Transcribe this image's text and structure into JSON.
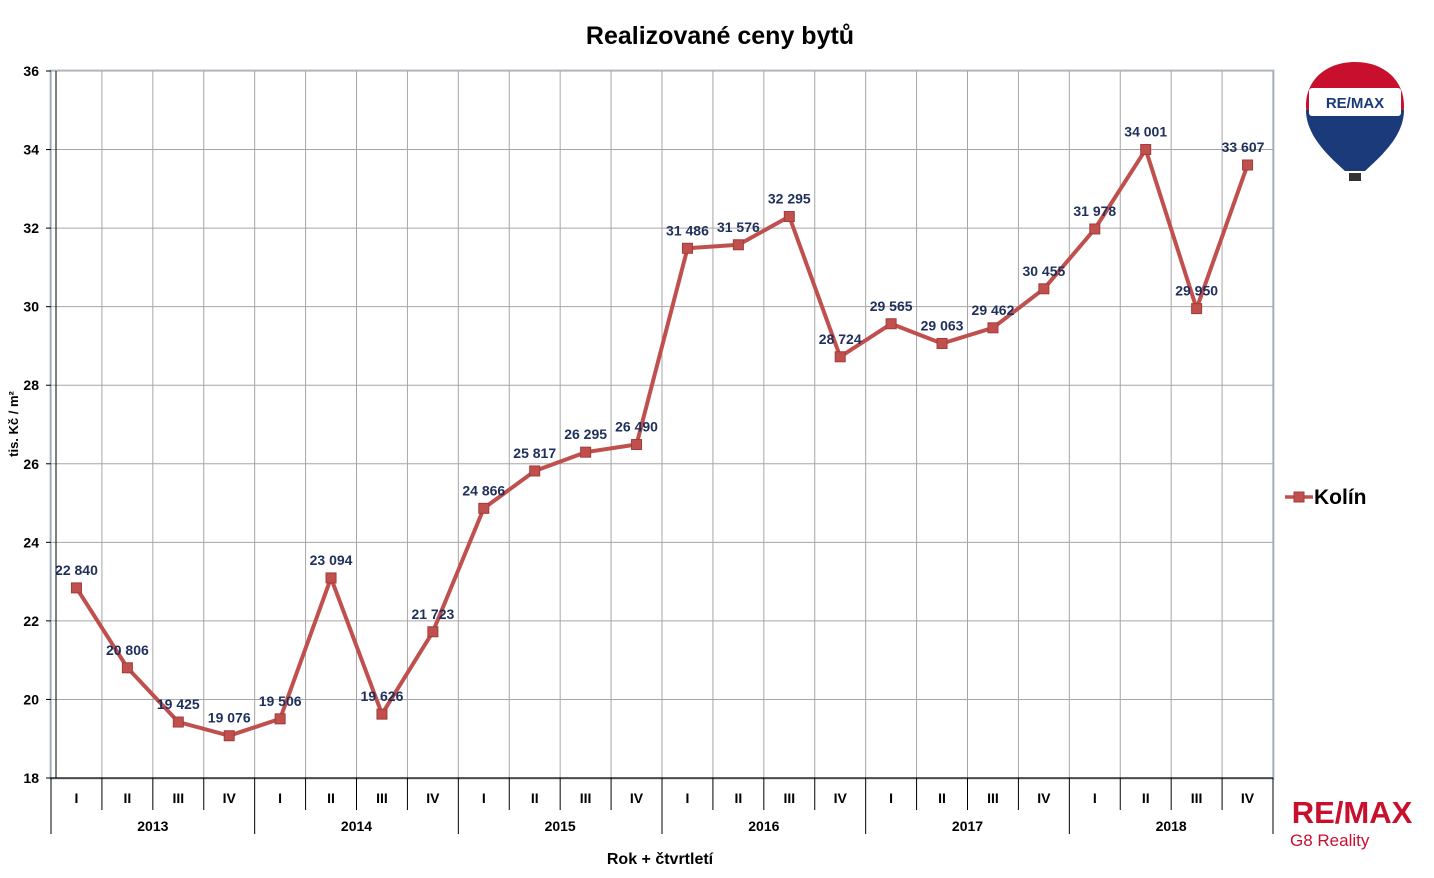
{
  "chart_data": {
    "type": "line",
    "title": "Realizované ceny bytů",
    "xlabel": "Rok + čtvrtletí",
    "ylabel": "tis. Kč / m²",
    "ylim": [
      18,
      36
    ],
    "yticks": [
      "18",
      "20",
      "22",
      "24",
      "26",
      "28",
      "30",
      "32",
      "34",
      "36"
    ],
    "grid": true,
    "legend_position": "right",
    "quarters": [
      "I",
      "II",
      "III",
      "IV"
    ],
    "years": [
      "2013",
      "2014",
      "2015",
      "2016",
      "2017",
      "2018"
    ],
    "series": [
      {
        "name": "Kolín",
        "color": "#c0504d",
        "values": [
          22.84,
          20.806,
          19.425,
          19.076,
          19.506,
          23.094,
          19.626,
          21.723,
          24.866,
          25.817,
          26.295,
          26.49,
          31.486,
          31.576,
          32.295,
          28.724,
          29.565,
          29.063,
          29.462,
          30.455,
          31.978,
          34.001,
          29.95,
          33.607
        ],
        "labels": [
          "22 840",
          "20 806",
          "19 425",
          "19 076",
          "19 506",
          "23 094",
          "19 626",
          "21 723",
          "24 866",
          "25 817",
          "26 295",
          "26 490",
          "31 486",
          "31 576",
          "32 295",
          "28 724",
          "29 565",
          "29 063",
          "29 462",
          "30 455",
          "31 978",
          "34 001",
          "29 950",
          "33 607"
        ]
      }
    ]
  },
  "branding": {
    "balloon_text": "RE/MAX",
    "logo_text": "RE/MAX",
    "logo_subtext": "G8 Reality",
    "brand_red": "#c8102e",
    "brand_blue": "#1a3a7a"
  }
}
